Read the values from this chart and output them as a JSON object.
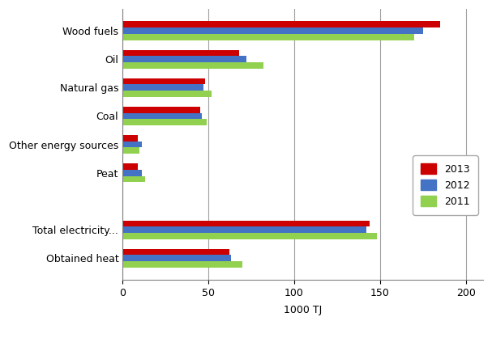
{
  "categories": [
    "Wood fuels",
    "Oil",
    "Natural gas",
    "Coal",
    "Other energy sources",
    "Peat",
    "",
    "Total electricity...",
    "Obtained heat"
  ],
  "series": {
    "2013": [
      185,
      68,
      48,
      45,
      9,
      9,
      0,
      144,
      62
    ],
    "2012": [
      175,
      72,
      47,
      46,
      11,
      11,
      0,
      142,
      63
    ],
    "2011": [
      170,
      82,
      52,
      49,
      10,
      13,
      0,
      148,
      70
    ]
  },
  "colors": {
    "2013": "#CC0000",
    "2012": "#4472C4",
    "2011": "#92D050"
  },
  "xlim": [
    0,
    210
  ],
  "xticks": [
    0,
    50,
    100,
    150,
    200
  ],
  "xlabel": "1000 TJ",
  "background_color": "#FFFFFF",
  "grid_color": "#A0A0A0",
  "legend_labels": [
    "2013",
    "2012",
    "2011"
  ],
  "bar_height": 0.22
}
